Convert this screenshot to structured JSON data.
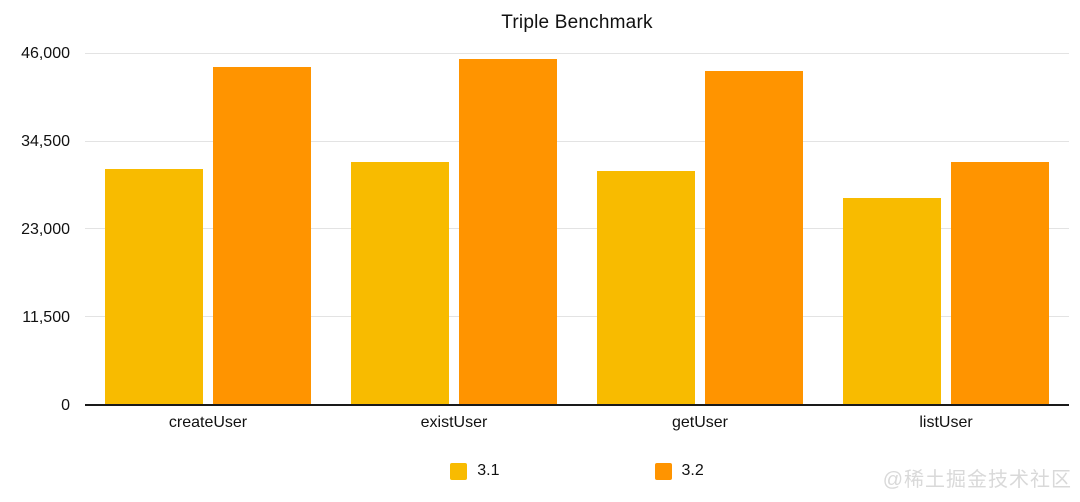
{
  "chart_data": {
    "type": "bar",
    "title": "Triple Benchmark",
    "categories": [
      "createUser",
      "existUser",
      "getUser",
      "listUser"
    ],
    "series": [
      {
        "name": "3.1",
        "color": "#F8BB00",
        "values": [
          30900,
          31800,
          30600,
          27100
        ]
      },
      {
        "name": "3.2",
        "color": "#FF9400",
        "values": [
          44300,
          45300,
          43800,
          31800
        ]
      }
    ],
    "ylim": [
      0,
      46000
    ],
    "yticks": [
      0,
      11500,
      23000,
      34500,
      46000
    ],
    "ytick_labels": [
      "0",
      "11,500",
      "23,000",
      "34,500",
      "46,000"
    ],
    "grid": true,
    "legend_position": "bottom",
    "colors": {
      "gridline": "#e3e3e3",
      "axis_line": "#1a1a1a",
      "text": "#111111",
      "watermark": "#d9d9d9"
    }
  },
  "watermark": "@稀土掘金技术社区"
}
